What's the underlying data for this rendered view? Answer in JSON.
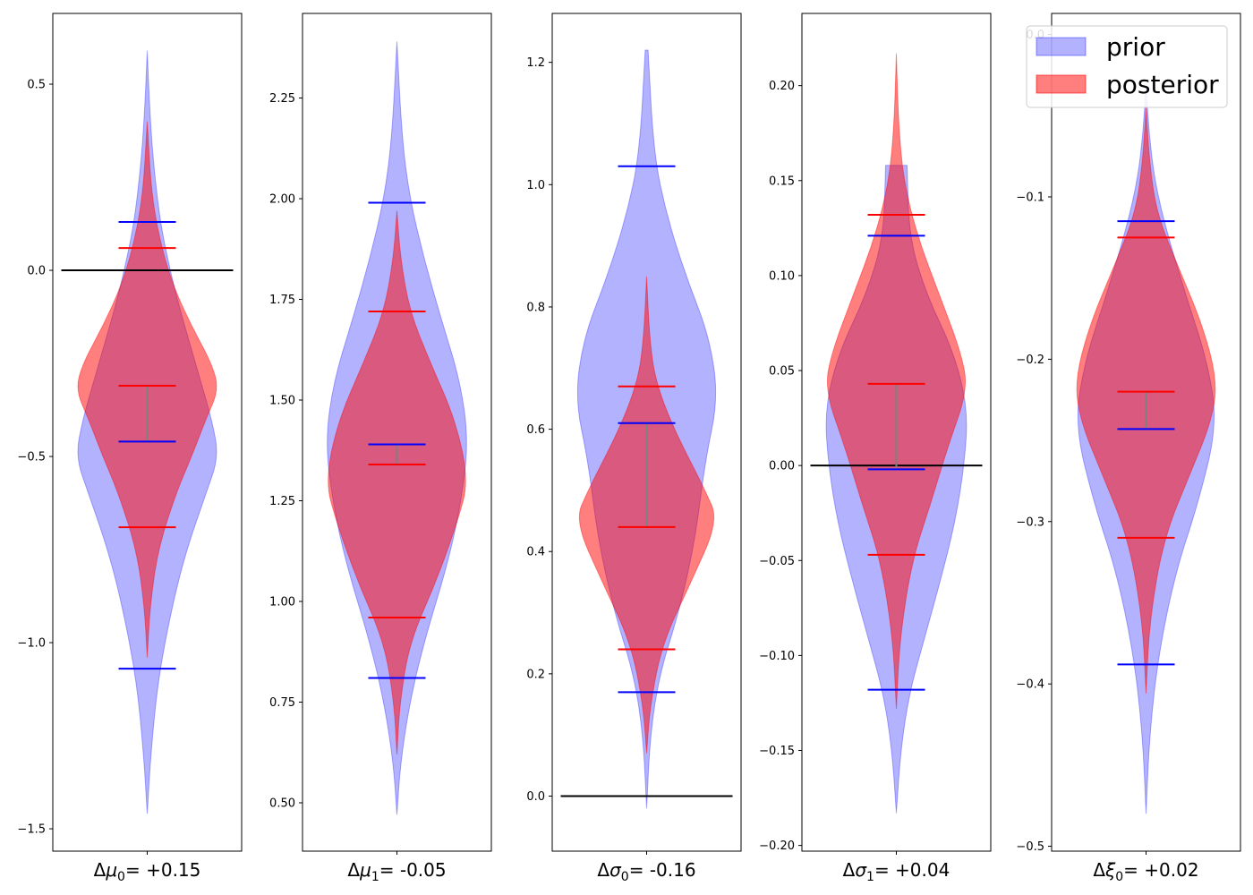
{
  "chart_data": [
    {
      "type": "violin",
      "xlabel": "Δμ₀= +0.15",
      "xlabel_parts": {
        "symbol": "μ",
        "sub": "0",
        "value": "= +0.15"
      },
      "ylim": [
        -1.56,
        0.69
      ],
      "yticks": [
        0.5,
        0.0,
        -0.5,
        -1.0,
        -1.5
      ],
      "ytick_labels": [
        "0.5",
        "0.0",
        "−0.5",
        "−1.0",
        "−1.5"
      ],
      "reference_line": 0.0,
      "prior": {
        "min": -1.46,
        "max": 0.59,
        "quantile_lines": [
          0.13,
          -0.46,
          -1.07
        ],
        "profile": [
          [
            -1.46,
            0.0
          ],
          [
            -1.3,
            0.05
          ],
          [
            -1.1,
            0.15
          ],
          [
            -0.9,
            0.35
          ],
          [
            -0.75,
            0.55
          ],
          [
            -0.6,
            0.82
          ],
          [
            -0.5,
            1.0
          ],
          [
            -0.4,
            0.9
          ],
          [
            -0.3,
            0.75
          ],
          [
            -0.2,
            0.6
          ],
          [
            -0.1,
            0.45
          ],
          [
            0.0,
            0.32
          ],
          [
            0.13,
            0.18
          ],
          [
            0.3,
            0.08
          ],
          [
            0.45,
            0.03
          ],
          [
            0.59,
            0.0
          ]
        ]
      },
      "posterior": {
        "min": -1.04,
        "max": 0.4,
        "quantile_lines": [
          0.06,
          -0.31,
          -0.69
        ],
        "profile": [
          [
            -1.04,
            0.0
          ],
          [
            -0.9,
            0.04
          ],
          [
            -0.75,
            0.15
          ],
          [
            -0.6,
            0.4
          ],
          [
            -0.5,
            0.62
          ],
          [
            -0.4,
            0.82
          ],
          [
            -0.32,
            1.0
          ],
          [
            -0.25,
            0.9
          ],
          [
            -0.15,
            0.62
          ],
          [
            -0.05,
            0.38
          ],
          [
            0.06,
            0.2
          ],
          [
            0.2,
            0.06
          ],
          [
            0.4,
            0.0
          ]
        ]
      },
      "median_segment": [
        -0.31,
        -0.46
      ]
    },
    {
      "type": "violin",
      "xlabel": "Δμ₁= -0.05",
      "xlabel_parts": {
        "symbol": "μ",
        "sub": "1",
        "value": "= -0.05"
      },
      "ylim": [
        0.38,
        2.46
      ],
      "yticks": [
        2.25,
        2.0,
        1.75,
        1.5,
        1.25,
        1.0,
        0.75,
        0.5
      ],
      "ytick_labels": [
        "2.25",
        "2.00",
        "1.75",
        "1.50",
        "1.25",
        "1.00",
        "0.75",
        "0.50"
      ],
      "reference_line": null,
      "prior": {
        "min": 0.47,
        "max": 2.39,
        "quantile_lines": [
          1.99,
          1.39,
          0.81
        ],
        "profile": [
          [
            0.47,
            0.0
          ],
          [
            0.6,
            0.05
          ],
          [
            0.75,
            0.18
          ],
          [
            0.9,
            0.38
          ],
          [
            1.1,
            0.72
          ],
          [
            1.25,
            0.9
          ],
          [
            1.4,
            1.0
          ],
          [
            1.55,
            0.88
          ],
          [
            1.7,
            0.62
          ],
          [
            1.85,
            0.38
          ],
          [
            2.0,
            0.18
          ],
          [
            2.15,
            0.07
          ],
          [
            2.39,
            0.0
          ]
        ]
      },
      "posterior": {
        "min": 0.62,
        "max": 1.97,
        "quantile_lines": [
          1.72,
          1.34,
          0.96
        ],
        "profile": [
          [
            0.62,
            0.0
          ],
          [
            0.75,
            0.04
          ],
          [
            0.9,
            0.18
          ],
          [
            1.05,
            0.55
          ],
          [
            1.2,
            0.85
          ],
          [
            1.3,
            1.0
          ],
          [
            1.45,
            0.82
          ],
          [
            1.6,
            0.45
          ],
          [
            1.72,
            0.18
          ],
          [
            1.85,
            0.05
          ],
          [
            1.97,
            0.0
          ]
        ]
      },
      "median_segment": [
        1.34,
        1.39
      ]
    },
    {
      "type": "violin",
      "xlabel": "Δσ₀= -0.16",
      "xlabel_parts": {
        "symbol": "σ",
        "sub": "0",
        "value": "= -0.16"
      },
      "ylim": [
        -0.09,
        1.28
      ],
      "yticks": [
        1.2,
        1.0,
        0.8,
        0.6,
        0.4,
        0.2,
        0.0
      ],
      "ytick_labels": [
        "1.2",
        "1.0",
        "0.8",
        "0.6",
        "0.4",
        "0.2",
        "0.0"
      ],
      "reference_line": 0.0,
      "prior": {
        "min": -0.02,
        "max": 1.22,
        "quantile_lines": [
          1.03,
          0.61,
          0.17
        ],
        "profile": [
          [
            -0.02,
            0.0
          ],
          [
            0.1,
            0.05
          ],
          [
            0.2,
            0.18
          ],
          [
            0.3,
            0.45
          ],
          [
            0.42,
            0.68
          ],
          [
            0.55,
            0.82
          ],
          [
            0.65,
            1.0
          ],
          [
            0.75,
            0.88
          ],
          [
            0.85,
            0.55
          ],
          [
            0.95,
            0.28
          ],
          [
            1.05,
            0.1
          ],
          [
            1.22,
            0.02
          ]
        ]
      },
      "posterior": {
        "min": 0.07,
        "max": 0.85,
        "quantile_lines": [
          0.67,
          0.44,
          0.24
        ],
        "profile": [
          [
            0.07,
            0.0
          ],
          [
            0.15,
            0.05
          ],
          [
            0.25,
            0.22
          ],
          [
            0.35,
            0.62
          ],
          [
            0.45,
            1.0
          ],
          [
            0.5,
            0.82
          ],
          [
            0.6,
            0.38
          ],
          [
            0.68,
            0.12
          ],
          [
            0.75,
            0.04
          ],
          [
            0.85,
            0.0
          ]
        ]
      },
      "median_segment": [
        0.44,
        0.61
      ]
    },
    {
      "type": "violin",
      "xlabel": "Δσ₁= +0.04",
      "xlabel_parts": {
        "symbol": "σ",
        "sub": "1",
        "value": "= +0.04"
      },
      "ylim": [
        -0.203,
        0.238
      ],
      "yticks": [
        0.2,
        0.15,
        0.1,
        0.05,
        0.0,
        -0.05,
        -0.1,
        -0.15,
        -0.2
      ],
      "ytick_labels": [
        "0.20",
        "0.15",
        "0.10",
        "0.05",
        "0.00",
        "−0.05",
        "−0.10",
        "−0.15",
        "−0.20"
      ],
      "reference_line": 0.0,
      "prior": {
        "min": -0.183,
        "max": 0.158,
        "quantile_lines": [
          0.121,
          -0.002,
          -0.118
        ],
        "profile": [
          [
            -0.183,
            0.0
          ],
          [
            -0.15,
            0.06
          ],
          [
            -0.12,
            0.18
          ],
          [
            -0.09,
            0.4
          ],
          [
            -0.06,
            0.62
          ],
          [
            -0.03,
            0.82
          ],
          [
            0.0,
            0.95
          ],
          [
            0.03,
            1.0
          ],
          [
            0.06,
            0.8
          ],
          [
            0.09,
            0.42
          ],
          [
            0.12,
            0.18
          ],
          [
            0.158,
            0.15
          ]
        ]
      },
      "posterior": {
        "min": -0.128,
        "max": 0.217,
        "quantile_lines": [
          0.132,
          0.043,
          -0.047
        ],
        "profile": [
          [
            -0.128,
            0.0
          ],
          [
            -0.09,
            0.05
          ],
          [
            -0.05,
            0.22
          ],
          [
            -0.02,
            0.48
          ],
          [
            0.01,
            0.72
          ],
          [
            0.04,
            1.0
          ],
          [
            0.06,
            0.9
          ],
          [
            0.09,
            0.6
          ],
          [
            0.12,
            0.3
          ],
          [
            0.15,
            0.1
          ],
          [
            0.18,
            0.03
          ],
          [
            0.217,
            0.0
          ]
        ]
      },
      "median_segment": [
        -0.002,
        0.043
      ]
    },
    {
      "type": "violin",
      "xlabel": "Δξ₀= +0.02",
      "xlabel_parts": {
        "symbol": "ξ",
        "sub": "0",
        "value": "= +0.02"
      },
      "ylim": [
        -0.503,
        0.013
      ],
      "yticks": [
        0.0,
        -0.1,
        -0.2,
        -0.3,
        -0.4,
        -0.5
      ],
      "ytick_labels": [
        "0.0",
        "−0.1",
        "−0.2",
        "−0.3",
        "−0.4",
        "−0.5"
      ],
      "reference_line": null,
      "prior": {
        "min": -0.48,
        "max": -0.03,
        "quantile_lines": [
          -0.115,
          -0.243,
          -0.388
        ],
        "profile": [
          [
            -0.48,
            0.0
          ],
          [
            -0.43,
            0.05
          ],
          [
            -0.38,
            0.18
          ],
          [
            -0.33,
            0.42
          ],
          [
            -0.29,
            0.72
          ],
          [
            -0.24,
            1.0
          ],
          [
            -0.2,
            0.85
          ],
          [
            -0.16,
            0.55
          ],
          [
            -0.12,
            0.28
          ],
          [
            -0.09,
            0.12
          ],
          [
            -0.06,
            0.04
          ],
          [
            -0.03,
            0.0
          ]
        ]
      },
      "posterior": {
        "min": -0.406,
        "max": -0.045,
        "quantile_lines": [
          -0.125,
          -0.22,
          -0.31
        ],
        "profile": [
          [
            -0.406,
            0.0
          ],
          [
            -0.36,
            0.05
          ],
          [
            -0.31,
            0.25
          ],
          [
            -0.27,
            0.62
          ],
          [
            -0.24,
            0.9
          ],
          [
            -0.215,
            1.0
          ],
          [
            -0.18,
            0.8
          ],
          [
            -0.14,
            0.42
          ],
          [
            -0.11,
            0.15
          ],
          [
            -0.08,
            0.05
          ],
          [
            -0.045,
            0.0
          ]
        ]
      },
      "median_segment": [
        -0.22,
        -0.243
      ]
    }
  ],
  "legend": {
    "placement": "top-right",
    "entries": [
      {
        "label": "prior",
        "color": "#0000ff",
        "alpha": 0.3
      },
      {
        "label": "posterior",
        "color": "#ff0000",
        "alpha": 0.5
      }
    ]
  },
  "colors": {
    "prior_fill": "#0000ff",
    "prior_lines": "#0000ff",
    "posterior_fill": "#ff0000",
    "posterior_lines": "#ff0000",
    "median_segment": "#808080",
    "reference_line": "#000000"
  }
}
